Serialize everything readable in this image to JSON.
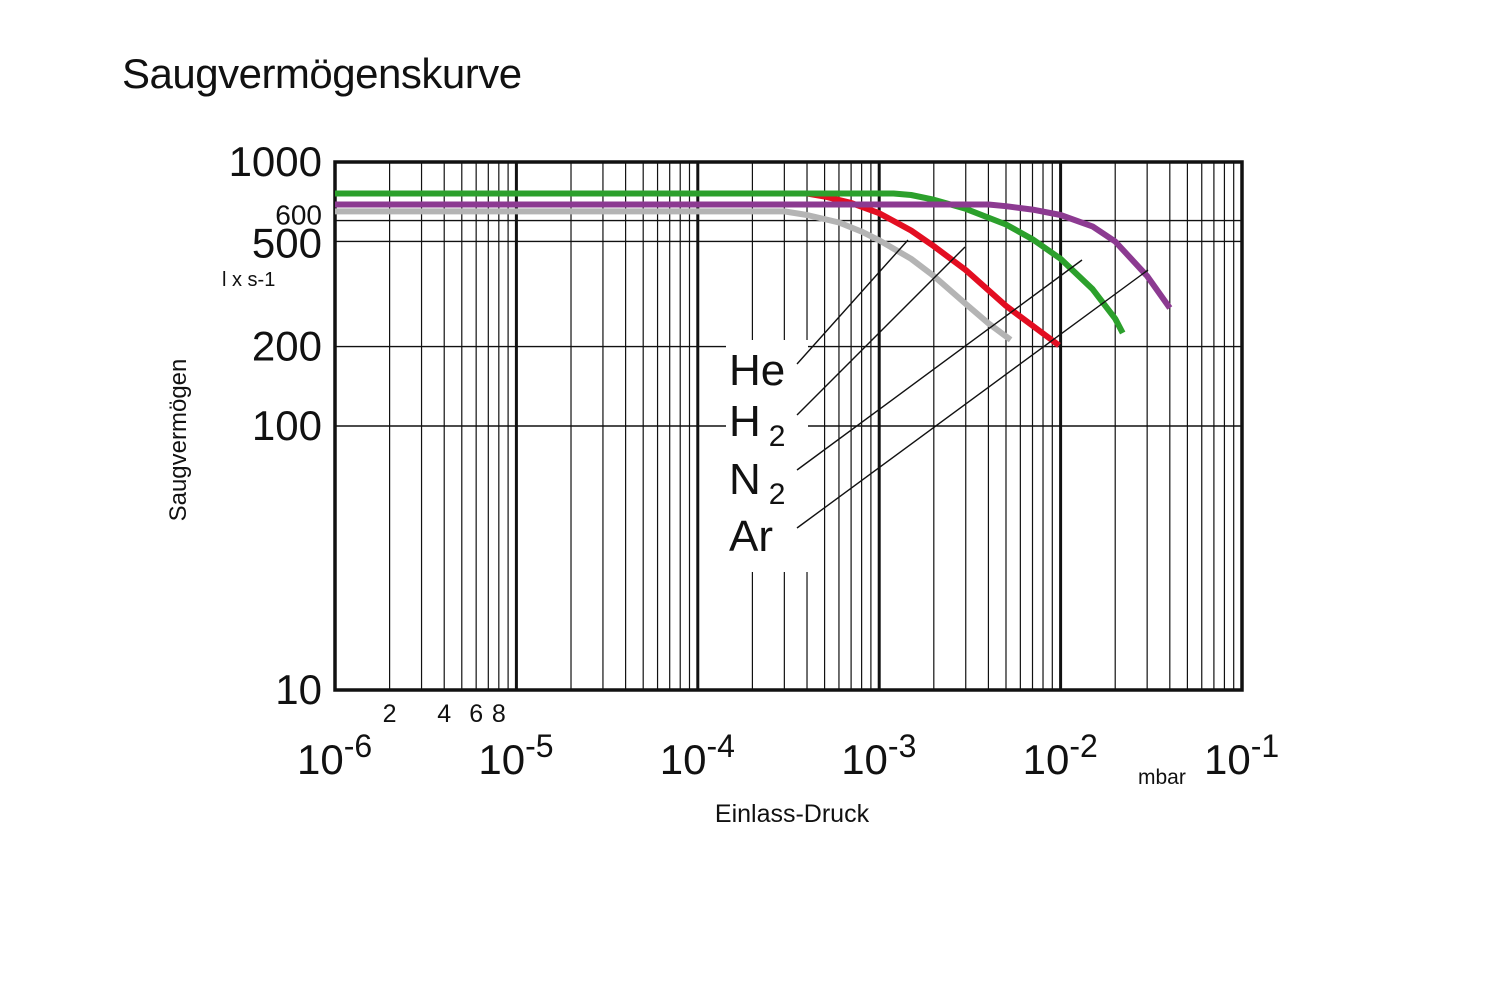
{
  "chart_data": {
    "type": "line",
    "title": "Saugvermögenskurve",
    "xlabel": "Einlass-Druck",
    "x_unit": "mbar",
    "ylabel": "Saugvermögen",
    "y_unit": "l x s-1",
    "x_scale": "log",
    "y_scale": "log",
    "xlim": [
      1e-06,
      0.1
    ],
    "ylim": [
      10,
      1000
    ],
    "grid": true,
    "x_major_ticks": [
      {
        "value": 1e-06,
        "base": "10",
        "exp": "-6"
      },
      {
        "value": 1e-05,
        "base": "10",
        "exp": "-5"
      },
      {
        "value": 0.0001,
        "base": "10",
        "exp": "-4"
      },
      {
        "value": 0.001,
        "base": "10",
        "exp": "-3"
      },
      {
        "value": 0.01,
        "base": "10",
        "exp": "-2"
      },
      {
        "value": 0.1,
        "base": "10",
        "exp": "-1"
      }
    ],
    "x_minor_tick_labels": [
      {
        "value": 2e-06,
        "label": "2"
      },
      {
        "value": 4e-06,
        "label": "4"
      },
      {
        "value": 6e-06,
        "label": "6"
      },
      {
        "value": 8e-06,
        "label": "8"
      }
    ],
    "y_ticks": [
      {
        "value": 1000,
        "label": "1000",
        "size": "large"
      },
      {
        "value": 600,
        "label": "600",
        "size": "small"
      },
      {
        "value": 500,
        "label": "500",
        "size": "large"
      },
      {
        "value": 200,
        "label": "200",
        "size": "large"
      },
      {
        "value": 100,
        "label": "100",
        "size": "large"
      },
      {
        "value": 10,
        "label": "10",
        "size": "large"
      }
    ],
    "series": [
      {
        "name": "He",
        "color": "#b4b4b4",
        "points": [
          [
            1e-06,
            650
          ],
          [
            0.0003,
            650
          ],
          [
            0.0004,
            630
          ],
          [
            0.0006,
            590
          ],
          [
            0.0008,
            545
          ],
          [
            0.001,
            505
          ],
          [
            0.0015,
            430
          ],
          [
            0.002,
            370
          ],
          [
            0.003,
            290
          ],
          [
            0.004,
            245
          ],
          [
            0.0053,
            212
          ]
        ]
      },
      {
        "name": "H2",
        "label_main": "H",
        "label_sub": "2",
        "color": "#e30e21",
        "points": [
          [
            1e-06,
            760
          ],
          [
            0.0004,
            760
          ],
          [
            0.0005,
            740
          ],
          [
            0.0007,
            700
          ],
          [
            0.001,
            640
          ],
          [
            0.0015,
            550
          ],
          [
            0.002,
            480
          ],
          [
            0.003,
            390
          ],
          [
            0.005,
            285
          ],
          [
            0.007,
            240
          ],
          [
            0.0098,
            202
          ]
        ]
      },
      {
        "name": "N2",
        "label_main": "N",
        "label_sub": "2",
        "color": "#2ca02c",
        "points": [
          [
            1e-06,
            760
          ],
          [
            0.0012,
            760
          ],
          [
            0.0015,
            750
          ],
          [
            0.002,
            720
          ],
          [
            0.003,
            665
          ],
          [
            0.005,
            580
          ],
          [
            0.007,
            510
          ],
          [
            0.01,
            430
          ],
          [
            0.015,
            330
          ],
          [
            0.02,
            255
          ],
          [
            0.022,
            225
          ]
        ]
      },
      {
        "name": "Ar",
        "color": "#8c3a91",
        "points": [
          [
            1e-06,
            690
          ],
          [
            0.004,
            690
          ],
          [
            0.005,
            680
          ],
          [
            0.007,
            660
          ],
          [
            0.01,
            630
          ],
          [
            0.015,
            570
          ],
          [
            0.02,
            500
          ],
          [
            0.03,
            370
          ],
          [
            0.04,
            280
          ]
        ]
      }
    ],
    "legend": "inline labels with leader lines, center-right"
  }
}
